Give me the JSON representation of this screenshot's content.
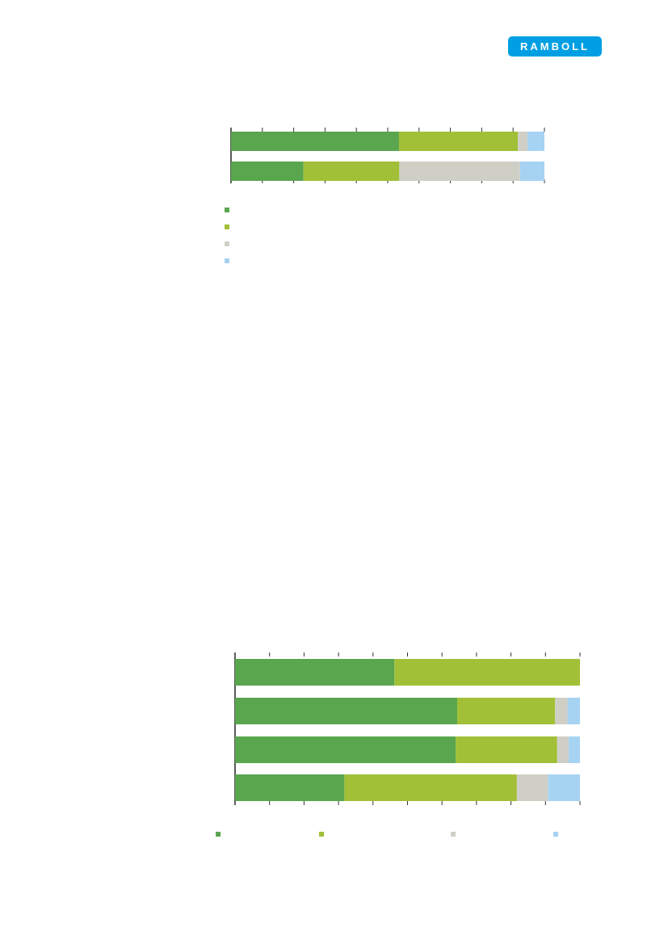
{
  "brand": {
    "name": "RAMBOLL",
    "color": "#009fe3"
  },
  "colors": [
    "#5aa64f",
    "#a1c037",
    "#cfcfc6",
    "#a7d3f3"
  ],
  "chart_data": [
    {
      "type": "bar",
      "orientation": "horizontal",
      "stacked": true,
      "percent": true,
      "xlim": [
        0,
        100
      ],
      "categories": [
        "",
        ""
      ],
      "series": [
        {
          "values": [
            53.6,
            23.1
          ]
        },
        {
          "values": [
            37.9,
            30.6
          ]
        },
        {
          "values": [
            3.1,
            38.5
          ]
        },
        {
          "values": [
            5.4,
            7.8
          ]
        }
      ]
    },
    {
      "type": "bar",
      "orientation": "horizontal",
      "stacked": true,
      "percent": true,
      "xlim": [
        0,
        100
      ],
      "categories": [
        "",
        "",
        "",
        ""
      ],
      "series": [
        {
          "values": [
            46.2,
            64.4,
            64.0,
            31.7
          ]
        },
        {
          "values": [
            53.8,
            28.4,
            29.4,
            50.0
          ]
        },
        {
          "values": [
            0.0,
            3.6,
            3.3,
            9.1
          ]
        },
        {
          "values": [
            0.0,
            3.6,
            3.3,
            9.2
          ]
        }
      ]
    }
  ]
}
